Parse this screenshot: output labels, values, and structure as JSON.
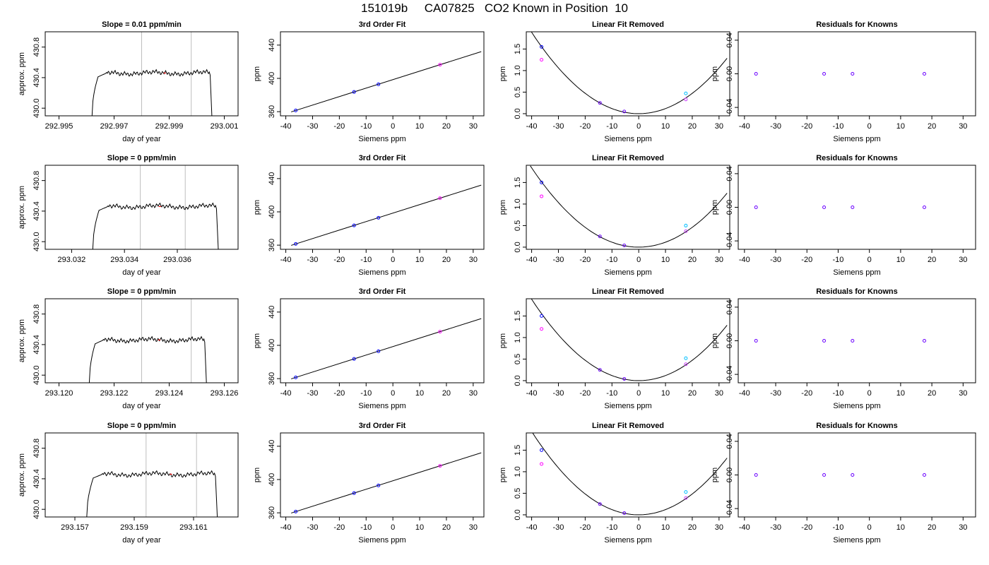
{
  "figure": {
    "title": "151019b     CA07825   CO2 Known in Position  10"
  },
  "chart_data": [
    {
      "row": 1,
      "col": 1,
      "type": "line",
      "title": "Slope =  0.01  ppm/min",
      "xlabel": "day of year",
      "ylabel": "approx. ppm",
      "xlim": [
        292.9945,
        293.0015
      ],
      "ylim": [
        429.9,
        431.0
      ],
      "xticks": [
        292.995,
        292.997,
        292.999,
        293.001
      ],
      "yticks": [
        430.0,
        430.4,
        430.8
      ],
      "vlines": [
        292.998,
        292.9998
      ],
      "trace": {
        "t_rise": 292.9962,
        "t_fall": 293.00055,
        "level": 430.46
      },
      "highlight_x": 292.9988
    },
    {
      "row": 1,
      "col": 2,
      "type": "scatter",
      "title": "3rd Order Fit",
      "xlabel": "Siemens ppm",
      "ylabel": "ppm",
      "xlim": [
        -42,
        34
      ],
      "ylim": [
        355,
        456
      ],
      "xticks": [
        -40,
        -30,
        -20,
        -10,
        0,
        10,
        20,
        30
      ],
      "yticks": [
        360,
        400,
        440
      ],
      "points": [
        {
          "x": -36.3,
          "y": 361.5
        },
        {
          "x": -14.5,
          "y": 383.7
        },
        {
          "x": -5.4,
          "y": 392.9
        },
        {
          "x": 17.6,
          "y": 416.4
        }
      ],
      "fit": {
        "intercept": 398.5,
        "slope": 1.02
      }
    },
    {
      "row": 1,
      "col": 3,
      "type": "scatter",
      "title": "Linear Fit Removed",
      "xlabel": "Siemens ppm",
      "ylabel": "ppm",
      "xlim": [
        -42,
        34
      ],
      "ylim": [
        -0.05,
        1.9
      ],
      "xticks": [
        -40,
        -30,
        -20,
        -10,
        0,
        10,
        20,
        30
      ],
      "yticks": [
        0.0,
        0.5,
        1.0,
        1.5
      ],
      "points": [
        {
          "x": -36.3,
          "y": 1.55
        },
        {
          "x": -36.3,
          "y": 1.25
        },
        {
          "x": -14.5,
          "y": 0.25
        },
        {
          "x": -5.4,
          "y": 0.05
        },
        {
          "x": 17.6,
          "y": 0.47
        },
        {
          "x": 17.6,
          "y": 0.33
        }
      ],
      "curve": {
        "a": 0.00118
      }
    },
    {
      "row": 1,
      "col": 4,
      "type": "scatter",
      "title": "Residuals for Knowns",
      "xlabel": "Siemens ppm",
      "ylabel": "ppm",
      "xlim": [
        -42,
        34
      ],
      "ylim": [
        -0.05,
        0.05
      ],
      "xticks": [
        -40,
        -30,
        -20,
        -10,
        0,
        10,
        20,
        30
      ],
      "yticks": [
        -0.04,
        0.0,
        0.04
      ],
      "points": [
        {
          "x": -36.3,
          "y": 0
        },
        {
          "x": -14.5,
          "y": 0
        },
        {
          "x": -5.4,
          "y": 0
        },
        {
          "x": 17.6,
          "y": 0
        }
      ]
    },
    {
      "row": 2,
      "col": 1,
      "type": "line",
      "title": "Slope =  0  ppm/min",
      "xlabel": "day of year",
      "ylabel": "approx. ppm",
      "xlim": [
        293.031,
        293.0383
      ],
      "ylim": [
        429.9,
        431.0
      ],
      "xticks": [
        293.032,
        293.034,
        293.036
      ],
      "yticks": [
        430.0,
        430.4,
        430.8
      ],
      "vlines": [
        293.0346,
        293.0363
      ],
      "trace": {
        "t_rise": 293.0328,
        "t_fall": 293.03755,
        "level": 430.46
      },
      "highlight_x": 293.0353
    },
    {
      "row": 2,
      "col": 2,
      "type": "scatter",
      "title": "3rd Order Fit",
      "xlabel": "Siemens ppm",
      "ylabel": "ppm",
      "xlim": [
        -42,
        34
      ],
      "ylim": [
        355,
        456
      ],
      "xticks": [
        -40,
        -30,
        -20,
        -10,
        0,
        10,
        20,
        30
      ],
      "yticks": [
        360,
        400,
        440
      ],
      "points": [
        {
          "x": -36.3,
          "y": 361.5
        },
        {
          "x": -14.5,
          "y": 383.7
        },
        {
          "x": -5.4,
          "y": 392.9
        },
        {
          "x": 17.6,
          "y": 416.4
        }
      ],
      "fit": {
        "intercept": 398.5,
        "slope": 1.02
      }
    },
    {
      "row": 2,
      "col": 3,
      "type": "scatter",
      "title": "Linear Fit Removed",
      "xlabel": "Siemens ppm",
      "ylabel": "ppm",
      "xlim": [
        -42,
        34
      ],
      "ylim": [
        -0.05,
        1.9
      ],
      "xticks": [
        -40,
        -30,
        -20,
        -10,
        0,
        10,
        20,
        30
      ],
      "yticks": [
        0.0,
        0.5,
        1.0,
        1.5
      ],
      "points": [
        {
          "x": -36.3,
          "y": 1.5
        },
        {
          "x": -36.3,
          "y": 1.18
        },
        {
          "x": -14.5,
          "y": 0.25
        },
        {
          "x": -5.4,
          "y": 0.04
        },
        {
          "x": 17.6,
          "y": 0.5
        },
        {
          "x": 17.6,
          "y": 0.37
        }
      ],
      "curve": {
        "a": 0.00115
      }
    },
    {
      "row": 2,
      "col": 4,
      "type": "scatter",
      "title": "Residuals for Knowns",
      "xlabel": "Siemens ppm",
      "ylabel": "ppm",
      "xlim": [
        -42,
        34
      ],
      "ylim": [
        -0.05,
        0.05
      ],
      "xticks": [
        -40,
        -30,
        -20,
        -10,
        0,
        10,
        20,
        30
      ],
      "yticks": [
        -0.04,
        0.0,
        0.04
      ],
      "points": [
        {
          "x": -36.3,
          "y": 0
        },
        {
          "x": -14.5,
          "y": 0
        },
        {
          "x": -5.4,
          "y": 0
        },
        {
          "x": 17.6,
          "y": 0
        }
      ]
    },
    {
      "row": 3,
      "col": 1,
      "type": "line",
      "title": "Slope =  0  ppm/min",
      "xlabel": "day of year",
      "ylabel": "approx. ppm",
      "xlim": [
        293.1195,
        293.1265
      ],
      "ylim": [
        429.9,
        431.0
      ],
      "xticks": [
        293.12,
        293.122,
        293.124,
        293.126
      ],
      "yticks": [
        430.0,
        430.4,
        430.8
      ],
      "vlines": [
        293.123,
        293.1248
      ],
      "trace": {
        "t_rise": 293.1211,
        "t_fall": 293.12535,
        "level": 430.46
      },
      "highlight_x": 293.1236
    },
    {
      "row": 3,
      "col": 2,
      "type": "scatter",
      "title": "3rd Order Fit",
      "xlabel": "Siemens ppm",
      "ylabel": "ppm",
      "xlim": [
        -42,
        34
      ],
      "ylim": [
        355,
        456
      ],
      "xticks": [
        -40,
        -30,
        -20,
        -10,
        0,
        10,
        20,
        30
      ],
      "yticks": [
        360,
        400,
        440
      ],
      "points": [
        {
          "x": -36.3,
          "y": 361.5
        },
        {
          "x": -14.5,
          "y": 383.7
        },
        {
          "x": -5.4,
          "y": 392.9
        },
        {
          "x": 17.6,
          "y": 416.4
        }
      ],
      "fit": {
        "intercept": 398.5,
        "slope": 1.02
      }
    },
    {
      "row": 3,
      "col": 3,
      "type": "scatter",
      "title": "Linear Fit Removed",
      "xlabel": "Siemens ppm",
      "ylabel": "ppm",
      "xlim": [
        -42,
        34
      ],
      "ylim": [
        -0.05,
        1.9
      ],
      "xticks": [
        -40,
        -30,
        -20,
        -10,
        0,
        10,
        20,
        30
      ],
      "yticks": [
        0.0,
        0.5,
        1.0,
        1.5
      ],
      "points": [
        {
          "x": -36.3,
          "y": 1.5
        },
        {
          "x": -36.3,
          "y": 1.2
        },
        {
          "x": -14.5,
          "y": 0.25
        },
        {
          "x": -5.4,
          "y": 0.04
        },
        {
          "x": 17.6,
          "y": 0.52
        },
        {
          "x": 17.6,
          "y": 0.38
        }
      ],
      "curve": {
        "a": 0.00118
      }
    },
    {
      "row": 3,
      "col": 4,
      "type": "scatter",
      "title": "Residuals for Knowns",
      "xlabel": "Siemens ppm",
      "ylabel": "ppm",
      "xlim": [
        -42,
        34
      ],
      "ylim": [
        -0.05,
        0.05
      ],
      "xticks": [
        -40,
        -30,
        -20,
        -10,
        0,
        10,
        20,
        30
      ],
      "yticks": [
        -0.04,
        0.0,
        0.04
      ],
      "points": [
        {
          "x": -36.3,
          "y": 0
        },
        {
          "x": -14.5,
          "y": 0
        },
        {
          "x": -5.4,
          "y": 0
        },
        {
          "x": 17.6,
          "y": 0
        }
      ]
    },
    {
      "row": 4,
      "col": 1,
      "type": "line",
      "title": "Slope =  0  ppm/min",
      "xlabel": "day of year",
      "ylabel": "approx. ppm",
      "xlim": [
        293.156,
        293.1625
      ],
      "ylim": [
        429.9,
        431.0
      ],
      "xticks": [
        293.157,
        293.159,
        293.161
      ],
      "yticks": [
        430.0,
        430.4,
        430.8
      ],
      "vlines": [
        293.1594,
        293.1611
      ],
      "trace": {
        "t_rise": 293.1574,
        "t_fall": 293.1618,
        "level": 430.46
      },
      "highlight_x": 293.1602
    },
    {
      "row": 4,
      "col": 2,
      "type": "scatter",
      "title": "3rd Order Fit",
      "xlabel": "Siemens ppm",
      "ylabel": "ppm",
      "xlim": [
        -42,
        34
      ],
      "ylim": [
        355,
        456
      ],
      "xticks": [
        -40,
        -30,
        -20,
        -10,
        0,
        10,
        20,
        30
      ],
      "yticks": [
        360,
        400,
        440
      ],
      "points": [
        {
          "x": -36.3,
          "y": 361.5
        },
        {
          "x": -14.5,
          "y": 383.7
        },
        {
          "x": -5.4,
          "y": 392.9
        },
        {
          "x": 17.6,
          "y": 416.4
        }
      ],
      "fit": {
        "intercept": 398.5,
        "slope": 1.02
      }
    },
    {
      "row": 4,
      "col": 3,
      "type": "scatter",
      "title": "Linear Fit Removed",
      "xlabel": "Siemens ppm",
      "ylabel": "ppm",
      "xlim": [
        -42,
        34
      ],
      "ylim": [
        -0.05,
        1.9
      ],
      "xticks": [
        -40,
        -30,
        -20,
        -10,
        0,
        10,
        20,
        30
      ],
      "yticks": [
        0.0,
        0.5,
        1.0,
        1.5
      ],
      "points": [
        {
          "x": -36.3,
          "y": 1.5
        },
        {
          "x": -36.3,
          "y": 1.18
        },
        {
          "x": -14.5,
          "y": 0.25
        },
        {
          "x": -5.4,
          "y": 0.04
        },
        {
          "x": 17.6,
          "y": 0.53
        },
        {
          "x": 17.6,
          "y": 0.39
        }
      ],
      "curve": {
        "a": 0.00121
      }
    },
    {
      "row": 4,
      "col": 4,
      "type": "scatter",
      "title": "Residuals for Knowns",
      "xlabel": "Siemens ppm",
      "ylabel": "ppm",
      "xlim": [
        -42,
        34
      ],
      "ylim": [
        -0.05,
        0.05
      ],
      "xticks": [
        -40,
        -30,
        -20,
        -10,
        0,
        10,
        20,
        30
      ],
      "yticks": [
        -0.04,
        0.0,
        0.04
      ],
      "points": [
        {
          "x": -36.3,
          "y": 0
        },
        {
          "x": -14.5,
          "y": 0
        },
        {
          "x": -5.4,
          "y": 0
        },
        {
          "x": 17.6,
          "y": 0
        }
      ]
    }
  ],
  "colors": {
    "axis": "#000000",
    "trace": "#000000",
    "vline": "#bebebe",
    "point_primary": "#0000ff",
    "point_secondary": "#ff00ff",
    "point_cyan": "#00bfff",
    "point_magenta": "#cc44ff",
    "point_purple": "#6a00ff",
    "highlight": "#ff0000"
  }
}
